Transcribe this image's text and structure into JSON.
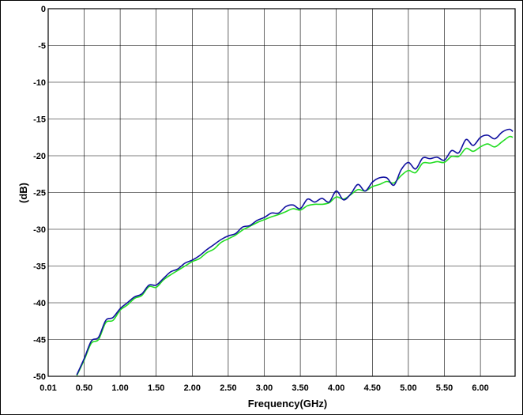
{
  "chart_data": {
    "type": "line",
    "xlabel": "Frequency(GHz)",
    "ylabel": "(dB)",
    "xlim": [
      0.01,
      6.5
    ],
    "ylim": [
      -50,
      0
    ],
    "x_ticks": [
      0.01,
      0.5,
      1.0,
      1.5,
      2.0,
      2.5,
      3.0,
      3.5,
      4.0,
      4.5,
      5.0,
      5.5,
      6.0
    ],
    "x_tick_labels": [
      "0.01",
      "0.50",
      "1.00",
      "1.50",
      "2.00",
      "2.50",
      "3.00",
      "3.50",
      "4.00",
      "4.50",
      "5.00",
      "5.50",
      "6.00"
    ],
    "y_ticks": [
      0,
      -5,
      -10,
      -15,
      -20,
      -25,
      -30,
      -35,
      -40,
      -45,
      -50
    ],
    "y_tick_labels": [
      "0",
      "-5",
      "-10",
      "-15",
      "-20",
      "-25",
      "-30",
      "-35",
      "-40",
      "-45",
      "-50"
    ],
    "grid": true,
    "series": [
      {
        "color": "#1010a0",
        "x": [
          0.4,
          0.5,
          0.6,
          0.7,
          0.8,
          0.9,
          1.0,
          1.1,
          1.2,
          1.3,
          1.4,
          1.5,
          1.6,
          1.7,
          1.8,
          1.9,
          2.0,
          2.1,
          2.2,
          2.3,
          2.4,
          2.5,
          2.6,
          2.7,
          2.8,
          2.9,
          3.0,
          3.1,
          3.2,
          3.3,
          3.4,
          3.5,
          3.6,
          3.7,
          3.8,
          3.9,
          4.0,
          4.1,
          4.2,
          4.3,
          4.4,
          4.5,
          4.6,
          4.7,
          4.8,
          4.9,
          5.0,
          5.1,
          5.2,
          5.3,
          5.4,
          5.5,
          5.6,
          5.7,
          5.8,
          5.9,
          6.0,
          6.1,
          6.2,
          6.3,
          6.4,
          6.45
        ],
        "y": [
          -49.8,
          -47.6,
          -45.2,
          -44.7,
          -42.4,
          -42.0,
          -40.8,
          -40.0,
          -39.2,
          -38.8,
          -37.6,
          -37.6,
          -36.7,
          -35.8,
          -35.4,
          -34.6,
          -34.2,
          -33.6,
          -32.8,
          -32.1,
          -31.4,
          -30.9,
          -30.6,
          -29.7,
          -29.5,
          -28.8,
          -28.4,
          -27.8,
          -27.8,
          -26.9,
          -26.7,
          -27.2,
          -25.9,
          -26.3,
          -25.8,
          -26.3,
          -24.8,
          -26.0,
          -25.2,
          -23.9,
          -24.8,
          -23.6,
          -23.0,
          -23.0,
          -24.0,
          -21.9,
          -20.9,
          -21.8,
          -20.3,
          -20.4,
          -20.2,
          -20.6,
          -19.3,
          -19.6,
          -17.8,
          -18.6,
          -17.5,
          -17.2,
          -17.7,
          -16.8,
          -16.4,
          -16.7
        ]
      },
      {
        "color": "#22dd22",
        "x": [
          0.4,
          0.5,
          0.6,
          0.7,
          0.8,
          0.9,
          1.0,
          1.1,
          1.2,
          1.3,
          1.4,
          1.5,
          1.6,
          1.7,
          1.8,
          1.9,
          2.0,
          2.1,
          2.2,
          2.3,
          2.4,
          2.5,
          2.6,
          2.7,
          2.8,
          2.9,
          3.0,
          3.1,
          3.2,
          3.3,
          3.4,
          3.5,
          3.6,
          3.7,
          3.8,
          3.9,
          4.0,
          4.1,
          4.2,
          4.3,
          4.4,
          4.5,
          4.6,
          4.7,
          4.8,
          4.9,
          5.0,
          5.1,
          5.2,
          5.3,
          5.4,
          5.5,
          5.6,
          5.7,
          5.8,
          5.9,
          6.0,
          6.1,
          6.2,
          6.3,
          6.4,
          6.45
        ],
        "y": [
          -49.9,
          -47.8,
          -45.5,
          -45.0,
          -42.7,
          -42.4,
          -41.0,
          -40.3,
          -39.4,
          -39.0,
          -37.8,
          -37.9,
          -36.9,
          -36.2,
          -35.6,
          -35.0,
          -34.4,
          -34.0,
          -33.2,
          -32.7,
          -31.8,
          -31.3,
          -30.8,
          -30.1,
          -29.6,
          -29.1,
          -28.7,
          -28.3,
          -28.0,
          -27.6,
          -27.2,
          -27.4,
          -26.8,
          -26.6,
          -26.6,
          -26.4,
          -25.6,
          -25.9,
          -25.3,
          -24.6,
          -24.8,
          -24.2,
          -23.9,
          -23.5,
          -23.7,
          -22.7,
          -22.0,
          -22.3,
          -21.0,
          -21.0,
          -20.8,
          -20.9,
          -20.1,
          -20.1,
          -19.0,
          -19.4,
          -18.8,
          -18.4,
          -18.8,
          -18.1,
          -17.4,
          -17.5
        ]
      }
    ]
  }
}
